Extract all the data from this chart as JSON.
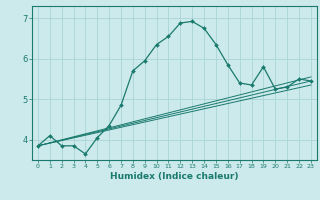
{
  "xlabel": "Humidex (Indice chaleur)",
  "bg_color": "#cce9eb",
  "grid_color": "#aad4d7",
  "line_color": "#1a7a6e",
  "xlim": [
    -0.5,
    23.5
  ],
  "ylim": [
    3.5,
    7.3
  ],
  "xticks": [
    0,
    1,
    2,
    3,
    4,
    5,
    6,
    7,
    8,
    9,
    10,
    11,
    12,
    13,
    14,
    15,
    16,
    17,
    18,
    19,
    20,
    21,
    22,
    23
  ],
  "yticks": [
    4,
    5,
    6,
    7
  ],
  "main_series": {
    "x": [
      0,
      1,
      2,
      3,
      4,
      5,
      6,
      7,
      8,
      9,
      10,
      11,
      12,
      13,
      14,
      15,
      16,
      17,
      18,
      19,
      20,
      21,
      22,
      23
    ],
    "y": [
      3.85,
      4.1,
      3.85,
      3.85,
      3.65,
      4.05,
      4.35,
      4.85,
      5.7,
      5.95,
      6.35,
      6.55,
      6.88,
      6.92,
      6.75,
      6.35,
      5.85,
      5.4,
      5.35,
      5.8,
      5.25,
      5.3,
      5.5,
      5.45
    ]
  },
  "trend_lines": [
    {
      "x": [
        0,
        23
      ],
      "y": [
        3.85,
        5.55
      ]
    },
    {
      "x": [
        0,
        23
      ],
      "y": [
        3.85,
        5.45
      ]
    },
    {
      "x": [
        0,
        23
      ],
      "y": [
        3.85,
        5.35
      ]
    }
  ]
}
